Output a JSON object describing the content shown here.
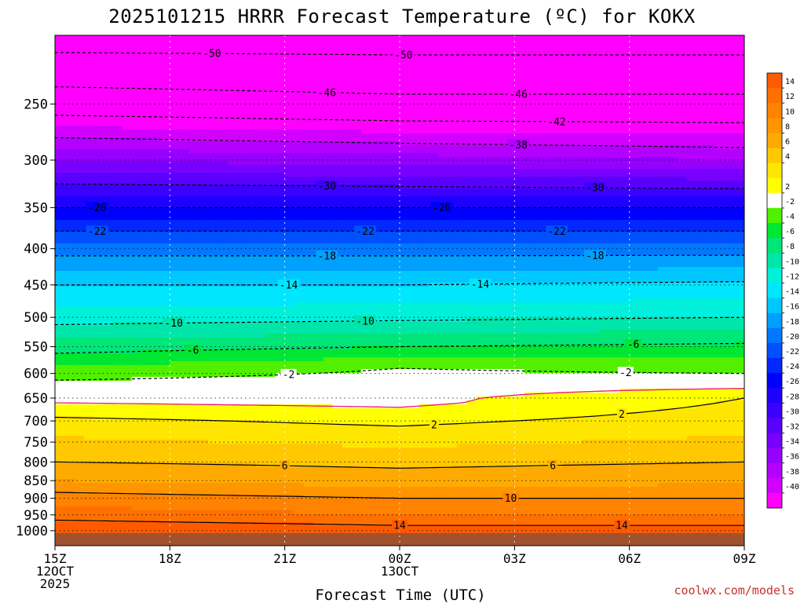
{
  "chart_data": {
    "type": "heatmap",
    "title": "2025101215 HRRR Forecast Temperature (ºC) for KOKX",
    "xlabel": "Forecast Time (UTC)",
    "ylabel": "",
    "credit": "coolwx.com/models",
    "x_ticks": [
      {
        "hour": 0,
        "lines": [
          "15Z",
          "12OCT",
          "2025"
        ]
      },
      {
        "hour": 3,
        "lines": [
          "18Z"
        ]
      },
      {
        "hour": 6,
        "lines": [
          "21Z"
        ]
      },
      {
        "hour": 9,
        "lines": [
          "00Z",
          "13OCT"
        ]
      },
      {
        "hour": 12,
        "lines": [
          "03Z"
        ]
      },
      {
        "hour": 15,
        "lines": [
          "06Z"
        ]
      },
      {
        "hour": 18,
        "lines": [
          "09Z"
        ]
      }
    ],
    "xlim": [
      0,
      18
    ],
    "y_axis": "pressure (hPa), log scale, inverted",
    "ylim": [
      1050,
      200
    ],
    "y_ticks": [
      250,
      300,
      350,
      400,
      450,
      500,
      550,
      600,
      650,
      700,
      750,
      800,
      850,
      900,
      950,
      1000
    ],
    "colorbar_labels": [
      14,
      12,
      10,
      8,
      6,
      4,
      2,
      -2,
      -4,
      -6,
      -8,
      -10,
      -12,
      -14,
      -16,
      -18,
      -20,
      -22,
      -24,
      -26,
      -28,
      -30,
      -32,
      -34,
      -36,
      -38,
      -40
    ],
    "colorbar": [
      {
        "lo": 14,
        "hi": 16,
        "color": "#ff5a00"
      },
      {
        "lo": 12,
        "hi": 14,
        "color": "#ff7000"
      },
      {
        "lo": 10,
        "hi": 12,
        "color": "#ff8200"
      },
      {
        "lo": 8,
        "hi": 10,
        "color": "#ff9600"
      },
      {
        "lo": 6,
        "hi": 8,
        "color": "#ffaa00"
      },
      {
        "lo": 4,
        "hi": 6,
        "color": "#ffc800"
      },
      {
        "lo": 2,
        "hi": 4,
        "color": "#ffe600"
      },
      {
        "lo": 0,
        "hi": 2,
        "color": "#ffff00"
      },
      {
        "lo": -2,
        "hi": 0,
        "color": "#ffffff"
      },
      {
        "lo": -4,
        "hi": -2,
        "color": "#50f000"
      },
      {
        "lo": -6,
        "hi": -4,
        "color": "#00e632"
      },
      {
        "lo": -8,
        "hi": -6,
        "color": "#00e678"
      },
      {
        "lo": -10,
        "hi": -8,
        "color": "#00e6aa"
      },
      {
        "lo": -12,
        "hi": -10,
        "color": "#00f0dc"
      },
      {
        "lo": -14,
        "hi": -12,
        "color": "#00e6ff"
      },
      {
        "lo": -16,
        "hi": -14,
        "color": "#00c8ff"
      },
      {
        "lo": -18,
        "hi": -16,
        "color": "#00a0ff"
      },
      {
        "lo": -20,
        "hi": -18,
        "color": "#0078ff"
      },
      {
        "lo": -22,
        "hi": -20,
        "color": "#0050ff"
      },
      {
        "lo": -24,
        "hi": -22,
        "color": "#0028ff"
      },
      {
        "lo": -26,
        "hi": -24,
        "color": "#0000ff"
      },
      {
        "lo": -28,
        "hi": -26,
        "color": "#1e00ff"
      },
      {
        "lo": -30,
        "hi": -28,
        "color": "#3c00ff"
      },
      {
        "lo": -32,
        "hi": -30,
        "color": "#5a00ff"
      },
      {
        "lo": -34,
        "hi": -32,
        "color": "#7800ff"
      },
      {
        "lo": -36,
        "hi": -34,
        "color": "#9600ff"
      },
      {
        "lo": -38,
        "hi": -36,
        "color": "#b400ff"
      },
      {
        "lo": -40,
        "hi": -38,
        "color": "#d200ff"
      },
      {
        "lo": -42,
        "hi": -40,
        "color": "#ff00ff"
      }
    ],
    "surface_color": "#a0522d",
    "freezing_line_color": "#e6197a",
    "temperature_profiles": [
      {
        "hour": 0,
        "points": [
          [
            1000,
            16
          ],
          [
            950,
            13
          ],
          [
            900,
            11
          ],
          [
            850,
            8
          ],
          [
            800,
            6
          ],
          [
            750,
            4.5
          ],
          [
            700,
            2.5
          ],
          [
            660,
            0
          ],
          [
            620,
            -1.5
          ],
          [
            600,
            -3
          ],
          [
            550,
            -7
          ],
          [
            500,
            -11
          ],
          [
            450,
            -14
          ],
          [
            400,
            -19
          ],
          [
            350,
            -26
          ],
          [
            300,
            -34
          ],
          [
            250,
            -44
          ],
          [
            200,
            -52
          ]
        ]
      },
      {
        "hour": 9,
        "points": [
          [
            1000,
            15
          ],
          [
            950,
            12
          ],
          [
            900,
            10
          ],
          [
            850,
            7
          ],
          [
            800,
            5.5
          ],
          [
            750,
            3.5
          ],
          [
            700,
            1.5
          ],
          [
            660,
            -0.5
          ],
          [
            620,
            -1
          ],
          [
            590,
            -2
          ],
          [
            550,
            -6
          ],
          [
            500,
            -10.5
          ],
          [
            450,
            -14
          ],
          [
            400,
            -19
          ],
          [
            350,
            -26
          ],
          [
            300,
            -35
          ],
          [
            250,
            -45
          ],
          [
            200,
            -52
          ]
        ]
      },
      {
        "hour": 18,
        "points": [
          [
            1000,
            15
          ],
          [
            950,
            12
          ],
          [
            900,
            10
          ],
          [
            850,
            7.5
          ],
          [
            800,
            6
          ],
          [
            750,
            4.5
          ],
          [
            700,
            3
          ],
          [
            650,
            2
          ],
          [
            620,
            -1
          ],
          [
            600,
            -2
          ],
          [
            550,
            -5.5
          ],
          [
            500,
            -10
          ],
          [
            450,
            -13.5
          ],
          [
            400,
            -19
          ],
          [
            350,
            -26
          ],
          [
            300,
            -36
          ],
          [
            250,
            -45
          ],
          [
            200,
            -52
          ]
        ]
      }
    ],
    "contours": [
      {
        "level": 14,
        "style": "solid",
        "label_hours": [
          9,
          14.8
        ]
      },
      {
        "level": 10,
        "style": "solid",
        "label_hours": [
          11.9
        ]
      },
      {
        "level": 6,
        "style": "solid",
        "label_hours": [
          6,
          13
        ]
      },
      {
        "level": 2,
        "style": "solid",
        "label_hours": [
          9.9,
          14.8
        ]
      },
      {
        "level": 0,
        "style": "freezing"
      },
      {
        "level": -2,
        "style": "dashed",
        "label_hours": [
          6.1,
          14.9
        ]
      },
      {
        "level": -6,
        "style": "dashed",
        "label_hours": [
          3.6,
          15.1
        ]
      },
      {
        "level": -10,
        "style": "dashed",
        "label_hours": [
          3.1,
          8.1
        ]
      },
      {
        "level": -14,
        "style": "dashed",
        "label_hours": [
          6.1,
          11.1
        ]
      },
      {
        "level": -18,
        "style": "dashed",
        "label_hours": [
          7.1,
          14.1
        ]
      },
      {
        "level": -22,
        "style": "dashed",
        "label_hours": [
          1.1,
          8.1,
          13.1
        ]
      },
      {
        "level": -26,
        "style": "dashed",
        "label_hours": [
          1.1,
          10.1
        ]
      },
      {
        "level": -30,
        "style": "dashed",
        "label_hours": [
          7.1,
          14.1
        ]
      },
      {
        "level": -38,
        "style": "dashed",
        "label_hours": [
          12.1
        ]
      },
      {
        "level": -42,
        "style": "dashed",
        "label_hours": [
          13.1
        ]
      },
      {
        "level": -46,
        "style": "dashed",
        "label_hours": [
          7.1,
          12.1
        ]
      },
      {
        "level": -50,
        "style": "dashed",
        "label_hours": [
          4.1,
          9.1
        ]
      }
    ]
  }
}
